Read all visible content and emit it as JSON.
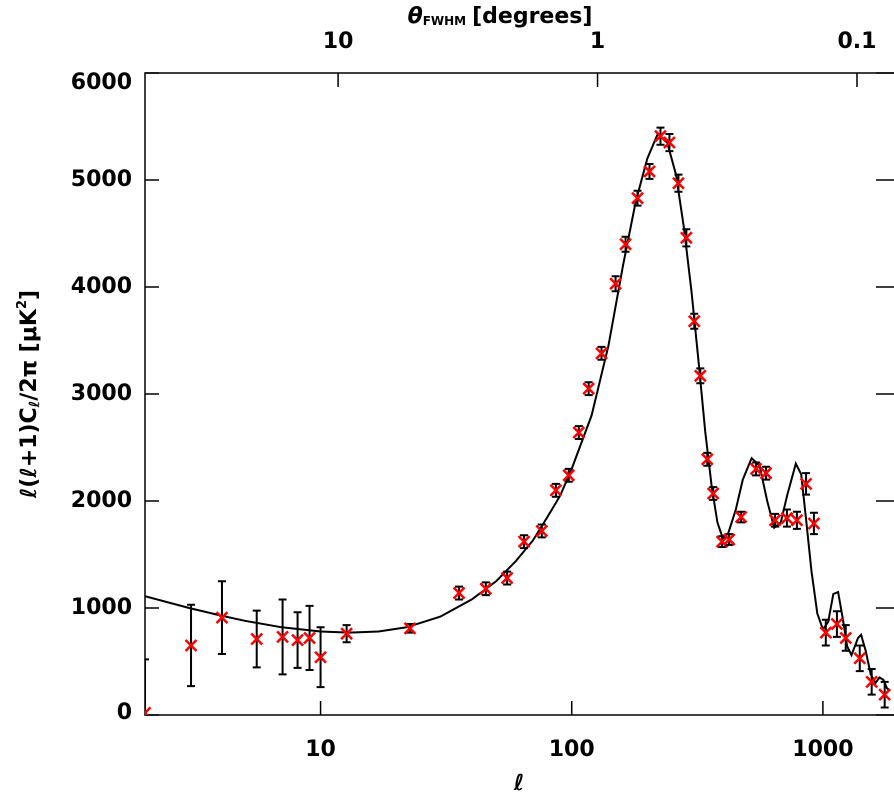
{
  "chart_data": {
    "type": "scatter",
    "xscale": "log",
    "xlim": [
      2,
      1850
    ],
    "xticks": [
      10,
      100,
      1000
    ],
    "xlabel": "ℓ",
    "ylim": [
      0,
      6000
    ],
    "yticks": [
      0,
      1000,
      2000,
      3000,
      4000,
      5000,
      6000
    ],
    "ylabel": {
      "main": "ℓ(ℓ+1)C",
      "sub": "ℓ",
      "rest": "/2π  [μK",
      "sup": "2",
      "end": "]"
    },
    "x2scale": "log",
    "x2lim": [
      55.5,
      0.0746
    ],
    "x2ticks": [
      10,
      1,
      0.1
    ],
    "x2label": {
      "symbol": "θ",
      "sub": "FWHM",
      "text": "[degrees]"
    },
    "series": [
      {
        "style": "markers",
        "color": "#ff0000",
        "x": [
          2,
          3.05,
          4.05,
          5.57,
          7.06,
          8.1,
          9.04,
          10,
          12.7,
          22.7,
          35.6,
          45.5,
          55.3,
          64.6,
          76,
          86.5,
          97.3,
          106.7,
          116.8,
          131.4,
          149.5,
          163.8,
          182.8,
          204,
          225.6,
          244.9,
          266,
          286,
          307.5,
          325,
          346.5,
          365.8,
          397,
          423.5,
          472.7,
          542,
          594,
          645,
          719,
          788,
          857,
          921,
          1027,
          1137,
          1233,
          1402,
          1564,
          1762
        ],
        "values": [
          20,
          650,
          910,
          710,
          730,
          700,
          720,
          540,
          760,
          810,
          1140,
          1180,
          1280,
          1620,
          1720,
          2100,
          2240,
          2640,
          3050,
          3380,
          4030,
          4400,
          4830,
          5080,
          5410,
          5350,
          4970,
          4460,
          3680,
          3170,
          2390,
          2070,
          1620,
          1640,
          1850,
          2300,
          2260,
          1820,
          1840,
          1820,
          2160,
          1790,
          770,
          850,
          720,
          530,
          310,
          190
        ],
        "errors": [
          500,
          380,
          340,
          265,
          350,
          260,
          300,
          280,
          80,
          40,
          60,
          60,
          60,
          60,
          60,
          60,
          60,
          60,
          60,
          60,
          70,
          70,
          70,
          70,
          80,
          80,
          80,
          80,
          70,
          70,
          60,
          60,
          50,
          50,
          50,
          60,
          60,
          60,
          80,
          80,
          100,
          100,
          120,
          120,
          120,
          120,
          120,
          120
        ]
      },
      {
        "style": "line",
        "color": "#000000",
        "x": [
          2,
          3,
          4,
          5,
          7,
          10,
          13,
          17,
          22,
          30,
          40,
          50,
          60,
          70,
          80,
          90,
          100,
          120,
          140,
          160,
          180,
          200,
          220,
          240,
          260,
          280,
          300,
          320,
          340,
          360,
          380,
          400,
          420,
          450,
          480,
          520,
          560,
          600,
          640,
          680,
          720,
          780,
          820,
          860,
          900,
          950,
          1000,
          1050,
          1100,
          1150,
          1200,
          1250,
          1300,
          1380,
          1420,
          1480,
          1550,
          1620,
          1680,
          1740,
          1800,
          1850
        ],
        "values": [
          1110,
          1000,
          930,
          880,
          820,
          780,
          770,
          780,
          820,
          920,
          1080,
          1250,
          1440,
          1630,
          1850,
          2050,
          2300,
          2800,
          3450,
          4200,
          4800,
          5200,
          5430,
          5350,
          5050,
          4550,
          3950,
          3300,
          2650,
          2150,
          1800,
          1650,
          1700,
          1920,
          2200,
          2400,
          2330,
          2000,
          1750,
          1800,
          2050,
          2350,
          2250,
          1800,
          1350,
          950,
          800,
          870,
          1130,
          1150,
          900,
          640,
          560,
          720,
          750,
          600,
          380,
          300,
          350,
          330,
          250,
          230
        ]
      }
    ]
  }
}
